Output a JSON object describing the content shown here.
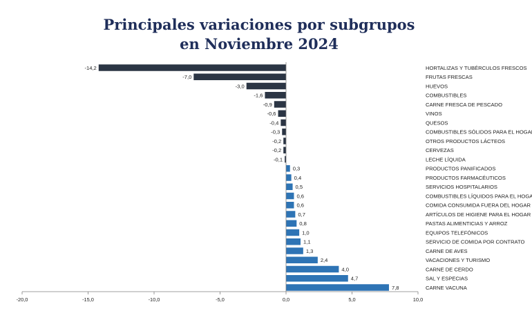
{
  "title_line1": "Principales variaciones por subgrupos",
  "title_line2": "en Noviembre 2024",
  "chart_data": {
    "type": "bar",
    "orientation": "horizontal",
    "title": "Principales variaciones por subgrupos en Noviembre 2024",
    "categories": [
      "HORTALIZAS Y TUBÉRCULOS FRESCOS",
      "FRUTAS FRESCAS",
      "HUEVOS",
      "COMBUSTIBLES",
      "CARNE FRESCA DE PESCADO",
      "VINOS",
      "QUESOS",
      "COMBUSTIBLES SÓLIDOS PARA EL HOGAR",
      "OTROS PRODUCTOS LÁCTEOS",
      "CERVEZAS",
      "LECHE LÍQUIDA",
      "PRODUCTOS PANIFICADOS",
      "PRODUCTOS FARMACÉUTICOS",
      "SERVICIOS HOSPITALARIOS",
      "COMBUSTIBLES LÍQUIDOS PARA EL HOGAR",
      "COMIDA CONSUMIDA FUERA DEL HOGAR",
      "ARTÍCULOS DE HIGIENE PARA EL HOGAR",
      "PASTAS ALIMENTICIAS Y ARROZ",
      "EQUIPOS TELEFÓNICOS",
      "SERVICIO DE COMIDA POR CONTRATO",
      "CARNE DE AVES",
      "VACACIONES Y TURISMO",
      "CARNE DE CERDO",
      "SAL Y ESPECIAS",
      "CARNE VACUNA"
    ],
    "values": [
      -14.2,
      -7.0,
      -3.0,
      -1.6,
      -0.9,
      -0.6,
      -0.4,
      -0.3,
      -0.2,
      -0.2,
      -0.1,
      0.3,
      0.4,
      0.5,
      0.6,
      0.6,
      0.7,
      0.8,
      1.0,
      1.1,
      1.3,
      2.4,
      4.0,
      4.7,
      7.8
    ],
    "value_labels": [
      "-14,2",
      "-7,0",
      "-3,0",
      "-1,6",
      "-0,9",
      "-0,6",
      "-0,4",
      "-0,3",
      "-0,2",
      "-0,2",
      "-0,1",
      "0,3",
      "0,4",
      "0,5",
      "0,6",
      "0,6",
      "0,7",
      "0,8",
      "1,0",
      "1,1",
      "1,3",
      "2,4",
      "4,0",
      "4,7",
      "7,8"
    ],
    "xlim": [
      -20,
      10
    ],
    "xticks": [
      -20,
      -15,
      -10,
      -5,
      0,
      5,
      10
    ],
    "xtick_labels": [
      "-20,0",
      "-15,0",
      "-10,0",
      "-5,0",
      "0,0",
      "5,0",
      "10,0"
    ],
    "grid": false,
    "legend": "none",
    "colors": {
      "negative": "#2b3544",
      "positive": "#2e74b5",
      "title": "#1f2e5a"
    }
  }
}
